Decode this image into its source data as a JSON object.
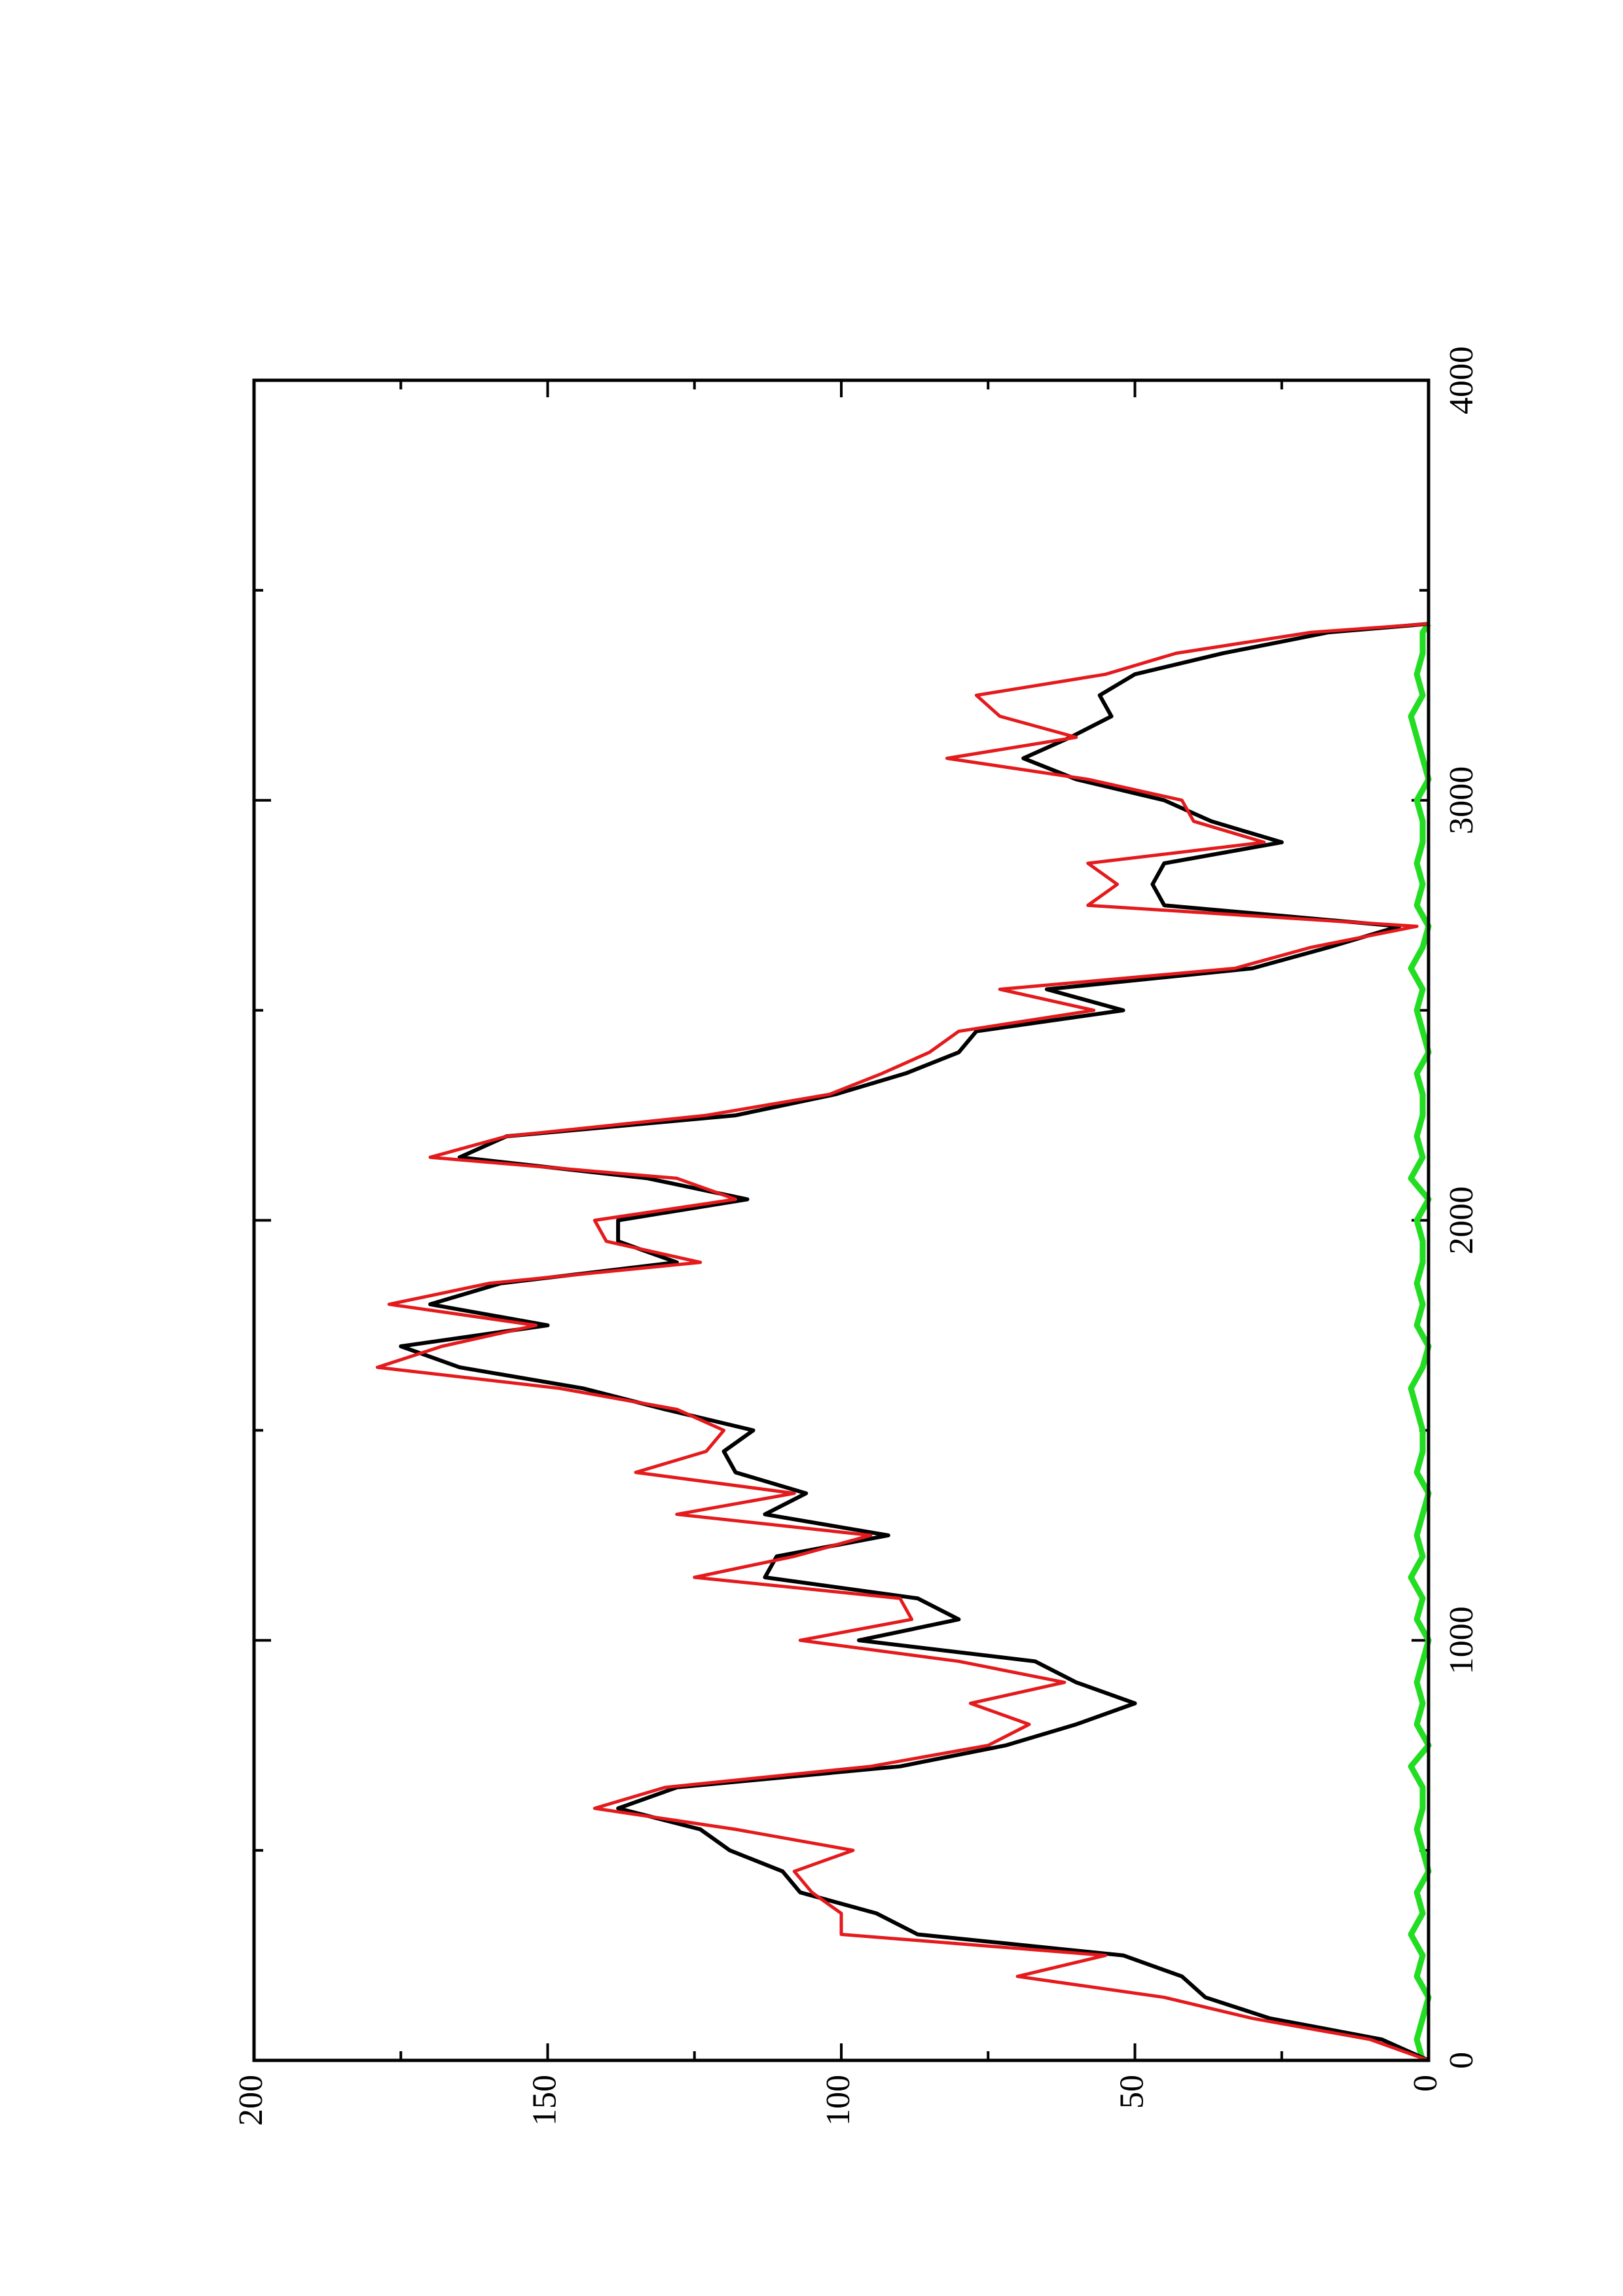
{
  "chart_data": {
    "type": "line",
    "x": [
      0,
      50,
      100,
      150,
      200,
      250,
      300,
      350,
      400,
      450,
      500,
      550,
      600,
      650,
      700,
      750,
      800,
      850,
      900,
      950,
      1000,
      1050,
      1100,
      1150,
      1200,
      1250,
      1300,
      1350,
      1400,
      1450,
      1500,
      1550,
      1600,
      1650,
      1700,
      1750,
      1800,
      1850,
      1900,
      1950,
      2000,
      2050,
      2100,
      2150,
      2200,
      2250,
      2300,
      2350,
      2400,
      2450,
      2500,
      2550,
      2600,
      2650,
      2700,
      2750,
      2800,
      2850,
      2900,
      2950,
      3000,
      3050,
      3100,
      3150,
      3200,
      3250,
      3300,
      3350,
      3400,
      3420
    ],
    "series": [
      {
        "color": "#000000",
        "values": [
          0,
          8,
          27,
          38,
          42,
          52,
          87,
          94,
          107,
          110,
          119,
          124,
          138,
          128,
          90,
          72,
          60,
          50,
          60,
          67,
          97,
          80,
          87,
          113,
          111,
          92,
          113,
          106,
          118,
          120,
          115,
          130,
          144,
          165,
          175,
          150,
          170,
          158,
          128,
          138,
          138,
          116,
          133,
          165,
          157,
          118,
          101,
          89,
          80,
          77,
          52,
          65,
          30,
          17,
          5,
          45,
          47,
          45,
          25,
          37,
          45,
          60,
          69,
          61,
          54,
          56,
          50,
          35,
          17,
          0
        ]
      },
      {
        "color": "#e41a1c",
        "values": [
          0,
          10,
          30,
          45,
          70,
          55,
          100,
          100,
          105,
          108,
          98,
          118,
          142,
          130,
          95,
          75,
          68,
          78,
          62,
          80,
          107,
          88,
          90,
          125,
          108,
          95,
          128,
          108,
          135,
          123,
          120,
          128,
          148,
          179,
          168,
          152,
          177,
          160,
          124,
          140,
          142,
          118,
          128,
          170,
          157,
          123,
          102,
          93,
          85,
          80,
          57,
          73,
          33,
          20,
          2,
          58,
          53,
          58,
          28,
          40,
          42,
          58,
          82,
          60,
          73,
          77,
          55,
          43,
          20,
          0
        ]
      },
      {
        "color": "#22dd22",
        "values": [
          1,
          2,
          1,
          0,
          2,
          1,
          3,
          1,
          2,
          0,
          1,
          2,
          1,
          1,
          3,
          0,
          2,
          1,
          2,
          1,
          0,
          2,
          1,
          3,
          1,
          2,
          1,
          0,
          2,
          1,
          1,
          2,
          3,
          1,
          0,
          2,
          1,
          2,
          1,
          1,
          2,
          0,
          3,
          1,
          2,
          1,
          1,
          2,
          0,
          1,
          2,
          1,
          3,
          1,
          0,
          2,
          1,
          2,
          1,
          1,
          2,
          0,
          1,
          2,
          3,
          1,
          2,
          1,
          1,
          0
        ]
      }
    ],
    "xlim": [
      0,
      4000
    ],
    "xticks": [
      0,
      1000,
      2000,
      3000,
      4000
    ],
    "xminor_ticks": [
      500,
      1500,
      2500,
      3500
    ],
    "ylim": [
      0,
      200
    ],
    "yticks": [
      0,
      50,
      100,
      150,
      200
    ],
    "yminor_ticks": [
      25,
      75,
      125,
      175
    ],
    "rotated": true
  }
}
